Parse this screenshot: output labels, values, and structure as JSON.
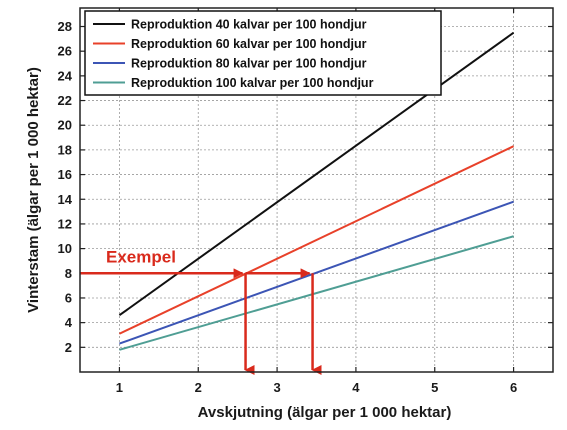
{
  "chart_data": {
    "type": "line",
    "title": "",
    "xlabel": "Avskjutning (älgar per 1 000 hektar)",
    "ylabel": "Vinterstam (älgar per 1 000 hektar)",
    "xlim": [
      0.5,
      6.5
    ],
    "ylim": [
      0,
      29.5
    ],
    "x_ticks": [
      1,
      2,
      3,
      4,
      5,
      6
    ],
    "y_ticks": [
      2,
      4,
      6,
      8,
      10,
      12,
      14,
      16,
      18,
      20,
      22,
      24,
      26,
      28
    ],
    "grid": true,
    "legend_position": "top-left",
    "series": [
      {
        "name": "Reproduktion 40 kalvar per 100 hondjur",
        "color": "#111111",
        "x": [
          1,
          6
        ],
        "y": [
          4.6,
          27.5
        ]
      },
      {
        "name": "Reproduktion 60 kalvar per 100 hondjur",
        "color": "#e8412a",
        "x": [
          1,
          6
        ],
        "y": [
          3.1,
          18.3
        ]
      },
      {
        "name": "Reproduktion 80 kalvar per 100 hondjur",
        "color": "#3c55b5",
        "x": [
          1,
          6
        ],
        "y": [
          2.3,
          13.8
        ]
      },
      {
        "name": "Reproduktion 100 kalvar per 100 hondjur",
        "color": "#4f9e94",
        "x": [
          1,
          6
        ],
        "y": [
          1.8,
          11.0
        ]
      }
    ],
    "annotation": {
      "label": "Exempel",
      "color": "#d92a1c",
      "y": 8,
      "x_points": [
        2.6,
        3.45
      ]
    }
  }
}
